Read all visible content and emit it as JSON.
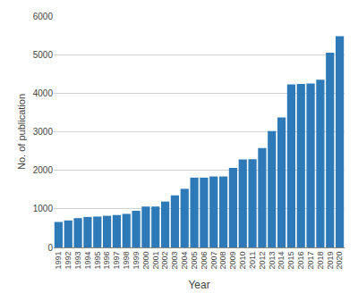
{
  "chart_data": {
    "type": "bar",
    "categories": [
      "1991",
      "1992",
      "1993",
      "1994",
      "1995",
      "1996",
      "1997",
      "1998",
      "1999",
      "2000",
      "2001",
      "2002",
      "2003",
      "2004",
      "2005",
      "2006",
      "2007",
      "2008",
      "2009",
      "2010",
      "2011",
      "2012",
      "2013",
      "2014",
      "2015",
      "2016",
      "2017",
      "2018",
      "2019",
      "2020"
    ],
    "values": [
      660,
      700,
      760,
      790,
      800,
      820,
      840,
      870,
      950,
      1060,
      1060,
      1190,
      1350,
      1520,
      1810,
      1810,
      1840,
      1840,
      2060,
      2280,
      2290,
      2580,
      3020,
      3370,
      4230,
      4240,
      4250,
      4350,
      5050,
      5480
    ],
    "color": "#2e7ab8",
    "xlabel": "Year",
    "ylabel": "No. of publication",
    "ylim": [
      0,
      6000
    ],
    "yticks": [
      0,
      1000,
      2000,
      3000,
      4000,
      5000,
      6000
    ],
    "grid": true
  }
}
